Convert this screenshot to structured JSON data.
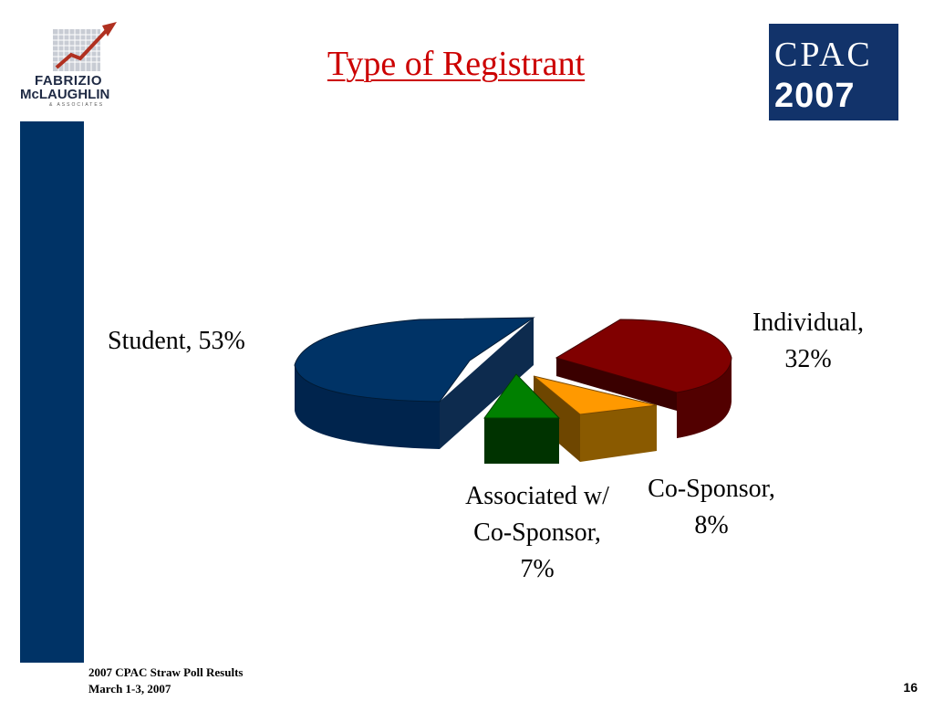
{
  "header": {
    "title": "Type of Registrant",
    "left_logo": {
      "line1": "FABRIZIO",
      "line2": "McLAUGHLIN",
      "line3": "& ASSOCIATES"
    },
    "right_logo": {
      "line1": "CPAC",
      "line2": "2007"
    }
  },
  "chart_data": {
    "type": "pie",
    "title": "Type of Registrant",
    "slices": [
      {
        "label": "Student,",
        "value_text": "53%",
        "value": 53,
        "color": "#003366"
      },
      {
        "label": "Individual,",
        "value_text": "32%",
        "value": 32,
        "color": "#800000"
      },
      {
        "label": "Co-Sponsor,",
        "value_text": "8%",
        "value": 8,
        "color": "#ff9900"
      },
      {
        "label": "Associated w/ Co-Sponsor,",
        "value_text": "7%",
        "value": 7,
        "color": "#008000"
      }
    ],
    "labels": {
      "student": "Student, 53%",
      "individual_1": "Individual,",
      "individual_2": "32%",
      "cosponsor_1": "Co-Sponsor,",
      "cosponsor_2": "8%",
      "assoc_1": "Associated w/",
      "assoc_2": "Co-Sponsor,",
      "assoc_3": "7%"
    },
    "style": "3d-exploded",
    "legend": "none"
  },
  "footer": {
    "line1": "2007 CPAC Straw Poll Results",
    "line2": "March 1-3, 2007",
    "page_number": "16"
  }
}
